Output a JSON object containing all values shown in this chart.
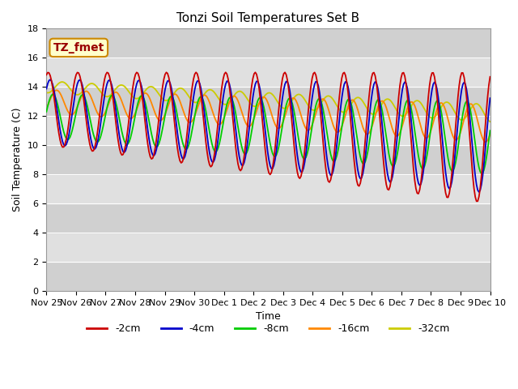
{
  "title": "Tonzi Soil Temperatures Set B",
  "xlabel": "Time",
  "ylabel": "Soil Temperature (C)",
  "ylim": [
    0,
    18
  ],
  "yticks": [
    0,
    2,
    4,
    6,
    8,
    10,
    12,
    14,
    16,
    18
  ],
  "xtick_labels": [
    "Nov 25",
    "Nov 26",
    "Nov 27",
    "Nov 28",
    "Nov 29",
    "Nov 30",
    "Dec 1",
    "Dec 2",
    "Dec 3",
    "Dec 4",
    "Dec 5",
    "Dec 6",
    "Dec 7",
    "Dec 8",
    "Dec 9",
    "Dec 10"
  ],
  "series": [
    {
      "label": "-2cm",
      "color": "#cc0000"
    },
    {
      "label": "-4cm",
      "color": "#0000cc"
    },
    {
      "label": "-8cm",
      "color": "#00cc00"
    },
    {
      "label": "-16cm",
      "color": "#ff8800"
    },
    {
      "label": "-32cm",
      "color": "#cccc00"
    }
  ],
  "annotation_text": "TZ_fmet",
  "annotation_color": "#990000",
  "annotation_bg": "#ffffcc",
  "annotation_edge": "#cc8800",
  "title_fontsize": 11,
  "axis_label_fontsize": 9,
  "tick_fontsize": 8,
  "legend_fontsize": 9
}
